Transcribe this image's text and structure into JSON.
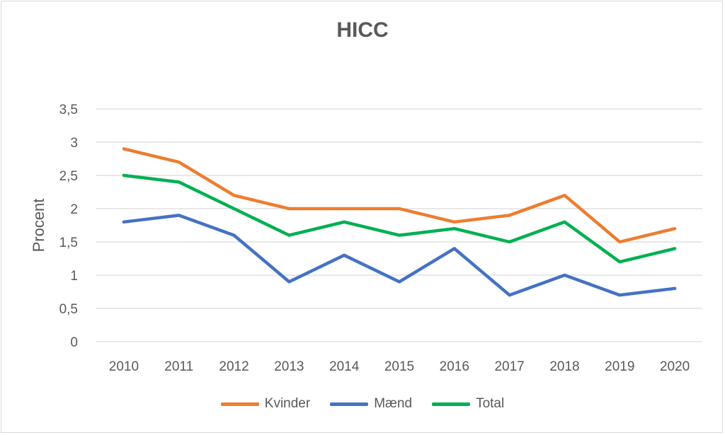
{
  "chart_data": {
    "type": "line",
    "title": "HICC",
    "xlabel": "",
    "ylabel": "Procent",
    "x": [
      "2010",
      "2011",
      "2012",
      "2013",
      "2014",
      "2015",
      "2016",
      "2017",
      "2018",
      "2019",
      "2020"
    ],
    "ylim": [
      0,
      3.5
    ],
    "yticks": [
      "0",
      "0,5",
      "1",
      "1,5",
      "2",
      "2,5",
      "3",
      "3,5"
    ],
    "grid": true,
    "legend_position": "bottom",
    "series": [
      {
        "name": "Kvinder",
        "color": "#ed7d31",
        "values": [
          2.9,
          2.7,
          2.2,
          2.0,
          2.0,
          2.0,
          1.8,
          1.9,
          2.2,
          1.5,
          1.7
        ]
      },
      {
        "name": "Mænd",
        "color": "#4472c4",
        "values": [
          1.8,
          1.9,
          1.6,
          0.9,
          1.3,
          0.9,
          1.4,
          0.7,
          1.0,
          0.7,
          0.8
        ]
      },
      {
        "name": "Total",
        "color": "#00b050",
        "values": [
          2.5,
          2.4,
          2.0,
          1.6,
          1.8,
          1.6,
          1.7,
          1.5,
          1.8,
          1.2,
          1.4
        ]
      }
    ]
  }
}
